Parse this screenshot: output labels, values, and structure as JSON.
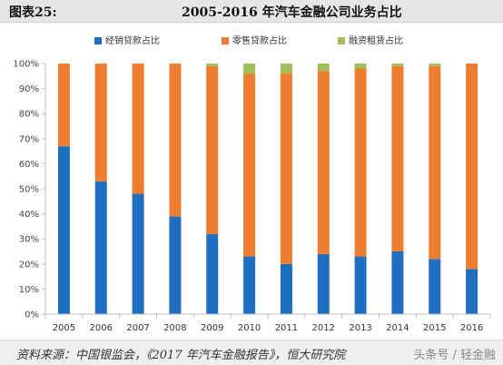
{
  "header": {
    "figure_label": "图表25:",
    "title": "2005-2016 年汽车金融公司业务占比"
  },
  "footer": {
    "source": "资料来源：中国银监会，《2017 年汽车金融报告》，恒大研究院",
    "watermark": "头条号 / 轻金融"
  },
  "chart_data": {
    "type": "bar",
    "stacked": true,
    "title": "2005-2016 年汽车金融公司业务占比",
    "categories": [
      "2005",
      "2006",
      "2007",
      "2008",
      "2009",
      "2010",
      "2011",
      "2012",
      "2013",
      "2014",
      "2015",
      "2016"
    ],
    "series": [
      {
        "name": "经销贷款占比",
        "color": "#1f6fc0",
        "values": [
          67,
          53,
          48,
          39,
          32,
          23,
          20,
          24,
          23,
          25,
          22,
          18
        ]
      },
      {
        "name": "零售贷款占比",
        "color": "#ee7d31",
        "values": [
          33,
          47,
          52,
          61,
          67,
          73,
          76,
          73,
          75,
          74,
          77,
          82
        ]
      },
      {
        "name": "融资租赁占比",
        "color": "#9fbf5b",
        "values": [
          0,
          0,
          0,
          0,
          1,
          4,
          4,
          3,
          2,
          1,
          1,
          0
        ]
      }
    ],
    "yticks": [
      "0%",
      "10%",
      "20%",
      "30%",
      "40%",
      "50%",
      "60%",
      "70%",
      "80%",
      "90%",
      "100%"
    ],
    "ylim": [
      0,
      100
    ],
    "legend_position": "top",
    "grid": false
  }
}
